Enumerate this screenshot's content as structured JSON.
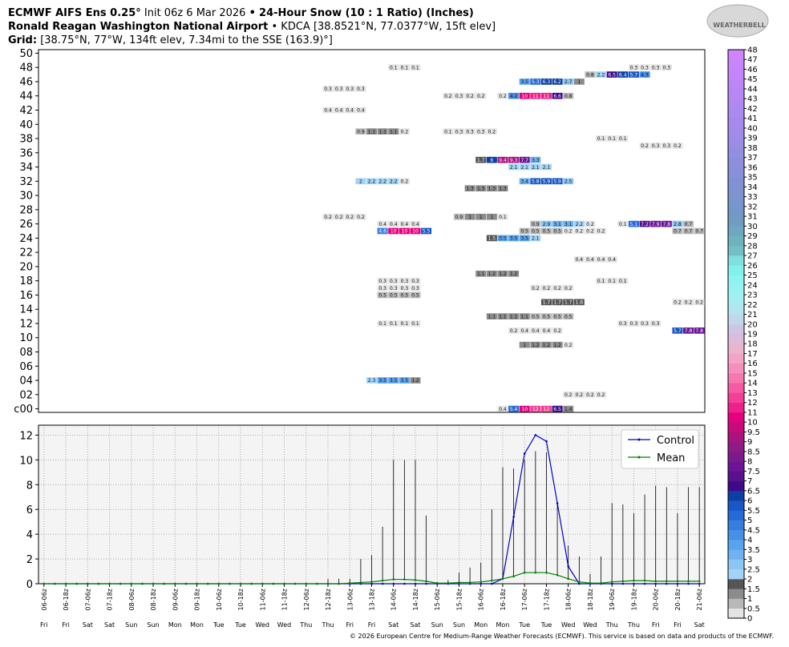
{
  "header": {
    "model": "ECMWF AIFS Ens 0.25°",
    "init": "Init 06z 6 Mar 2026",
    "separator": "•",
    "product": "24-Hour Snow (10 : 1 Ratio) (Inches)",
    "station": "Ronald Reagan Washington National Airport",
    "station_info": "• KDCA [38.8521°N, 77.0377°W, 15ft elev]",
    "grid_label": "Grid:",
    "grid_info": "[38.75°N, 77°W, 134ft elev, 7.34mi to the SSE (163.9)°]"
  },
  "logo": "WEATHERBELL",
  "footer": "© 2026 European Centre for Medium-Range Weather Forecasts (ECMWF). This service is based on data and products of the ECMWF.",
  "chart_data": [
    {
      "type": "heatmap",
      "ylim": [
        -0.5,
        50.5
      ],
      "xlim": [
        -0.5,
        60.5
      ],
      "yticks": [
        {
          "value": 0,
          "label": "c00"
        },
        {
          "value": 2,
          "label": "02"
        },
        {
          "value": 4,
          "label": "04"
        },
        {
          "value": 6,
          "label": "06"
        },
        {
          "value": 8,
          "label": "08"
        },
        10,
        12,
        14,
        16,
        18,
        20,
        22,
        24,
        26,
        28,
        30,
        32,
        34,
        36,
        38,
        40,
        42,
        44,
        46,
        48,
        50
      ],
      "rows": [
        {
          "member": 48,
          "from": 32,
          "values": [
            0.1,
            0.1,
            0.1
          ]
        },
        {
          "member": 48,
          "from": 54,
          "values": [
            0.3,
            0.3,
            0.3,
            0.3
          ]
        },
        {
          "member": 47,
          "from": 50,
          "values": [
            0.8,
            2.2,
            6.5,
            6.4,
            5.7,
            4.3
          ]
        },
        {
          "member": 46,
          "from": 44,
          "values": [
            3.5,
            5.3,
            6.3,
            6.2,
            2.7,
            1
          ]
        },
        {
          "member": 45,
          "from": 26,
          "values": [
            0.3,
            0.3,
            0.3,
            0.3
          ]
        },
        {
          "member": 44,
          "from": 37,
          "values": [
            0.2,
            0.3,
            0.2,
            0.2
          ]
        },
        {
          "member": 44,
          "from": 42,
          "values": [
            0.2,
            4.2,
            10,
            11,
            11,
            6.6,
            0.8
          ]
        },
        {
          "member": 42,
          "from": 26,
          "values": [
            0.4,
            0.4,
            0.4,
            0.4
          ]
        },
        {
          "member": 39,
          "from": 29,
          "values": [
            0.9,
            1.1,
            1.1,
            1.1,
            0.2
          ]
        },
        {
          "member": 39,
          "from": 37,
          "values": [
            0.1,
            0.3,
            0.3,
            0.3,
            0.2
          ]
        },
        {
          "member": 38,
          "from": 51,
          "values": [
            0.1,
            0.1,
            0.1
          ]
        },
        {
          "member": 37,
          "from": 55,
          "values": [
            0.2,
            0.3,
            0.3,
            0.2
          ]
        },
        {
          "member": 35,
          "from": 40,
          "values": [
            1.7,
            6,
            9.4,
            9.3,
            7.7,
            3.3
          ]
        },
        {
          "member": 34,
          "from": 43,
          "values": [
            2.1,
            2.1,
            2.1,
            2.1
          ]
        },
        {
          "member": 32,
          "from": 29,
          "values": [
            2,
            2.2,
            2.2,
            2.2,
            0.2
          ]
        },
        {
          "member": 32,
          "from": 44,
          "values": [
            3.4,
            5.8,
            5.9,
            5.9,
            2.5
          ]
        },
        {
          "member": 31,
          "from": 39,
          "values": [
            1.3,
            1.3,
            1.3,
            1.3
          ]
        },
        {
          "member": 27,
          "from": 26,
          "values": [
            0.2,
            0.2,
            0.2,
            0.2
          ]
        },
        {
          "member": 27,
          "from": 38,
          "values": [
            0.9,
            1,
            1,
            1,
            0.1
          ]
        },
        {
          "member": 26,
          "from": 31,
          "values": [
            0.4,
            0.4,
            0.4,
            0.4
          ]
        },
        {
          "member": 26,
          "from": 45,
          "values": [
            0.9,
            2.9,
            3.1,
            3.1,
            2.2,
            0.2
          ]
        },
        {
          "member": 26,
          "from": 53,
          "values": [
            0.1,
            5.1,
            7.2,
            7.9,
            7.8,
            2.8,
            0.7
          ]
        },
        {
          "member": 25,
          "from": 31,
          "values": [
            4.6,
            10,
            10,
            10,
            5.5
          ]
        },
        {
          "member": 25,
          "from": 44,
          "values": [
            0.5,
            0.5,
            0.5,
            0.5,
            0.2,
            0.2,
            0.2,
            0.2
          ]
        },
        {
          "member": 25,
          "from": 58,
          "values": [
            0.7,
            0.7,
            0.7
          ]
        },
        {
          "member": 24,
          "from": 41,
          "values": [
            1.5,
            3.5,
            3.5,
            3.5,
            2.1
          ]
        },
        {
          "member": 21,
          "from": 49,
          "values": [
            0.4,
            0.4,
            0.4,
            0.4
          ]
        },
        {
          "member": 19,
          "from": 40,
          "values": [
            1.1,
            1.2,
            1.2,
            1.2
          ]
        },
        {
          "member": 18,
          "from": 31,
          "values": [
            0.3,
            0.3,
            0.3,
            0.3
          ]
        },
        {
          "member": 18,
          "from": 51,
          "values": [
            0.1,
            0.1,
            0.1
          ]
        },
        {
          "member": 17,
          "from": 31,
          "values": [
            0.3,
            0.3,
            0.3,
            0.3
          ]
        },
        {
          "member": 17,
          "from": 45,
          "values": [
            0.2,
            0.2,
            0.2,
            0.2
          ]
        },
        {
          "member": 16,
          "from": 31,
          "values": [
            0.5,
            0.5,
            0.5,
            0.5
          ]
        },
        {
          "member": 15,
          "from": 46,
          "values": [
            1.7,
            1.7,
            1.7,
            1.6
          ]
        },
        {
          "member": 15,
          "from": 58,
          "values": [
            0.2,
            0.2,
            0.2
          ]
        },
        {
          "member": 13,
          "from": 41,
          "values": [
            1.1,
            1.1,
            1.1,
            1.1,
            0.5,
            0.5,
            0.5,
            0.5
          ]
        },
        {
          "member": 12,
          "from": 31,
          "values": [
            0.1,
            0.1,
            0.1,
            0.1
          ]
        },
        {
          "member": 12,
          "from": 53,
          "values": [
            0.3,
            0.3,
            0.3,
            0.3
          ]
        },
        {
          "member": 11,
          "from": 43,
          "values": [
            0.2,
            0.4,
            0.4,
            0.4,
            0.2
          ]
        },
        {
          "member": 11,
          "from": 58,
          "values": [
            5.7,
            7.8,
            7.8
          ]
        },
        {
          "member": 9,
          "from": 44,
          "values": [
            1,
            1.2,
            1.2,
            1.2,
            0.2
          ]
        },
        {
          "member": 4,
          "from": 30,
          "values": [
            2.3,
            3.5,
            3.5,
            3.5,
            1.2
          ]
        },
        {
          "member": 2,
          "from": 48,
          "values": [
            0.2,
            0.2,
            0.2,
            0.2
          ]
        },
        {
          "member": 0,
          "from": 42,
          "values": [
            0.4,
            5.4,
            10,
            12,
            12,
            6.5,
            1.4
          ]
        }
      ],
      "colorbar": {
        "levels": [
          0,
          0.5,
          1,
          1.5,
          2,
          2.5,
          3,
          3.5,
          4,
          4.5,
          5,
          5.5,
          6,
          6.5,
          7,
          7.5,
          8,
          8.5,
          9,
          9.5,
          10,
          11,
          12,
          13,
          14,
          15,
          16,
          17,
          18,
          19,
          20,
          21,
          22,
          23,
          24,
          25,
          26,
          27,
          28,
          29,
          30,
          31,
          32,
          33,
          34,
          35,
          36,
          37,
          38,
          39,
          40,
          41,
          42,
          43,
          44,
          45,
          46,
          47,
          48
        ],
        "colors": [
          "#e4e4e4",
          "#b8b8b8",
          "#8c8c8c",
          "#555555",
          "#a3d4f7",
          "#8cc6f5",
          "#6fb2f0",
          "#5aa2ec",
          "#4690e6",
          "#357ee0",
          "#256ad6",
          "#1857c4",
          "#0c3fa6",
          "#3f0a8a",
          "#58108f",
          "#6b1596",
          "#7d1a8a",
          "#911a84",
          "#a8137e",
          "#c80a7e",
          "#e6007e",
          "#f0208a",
          "#f43f96",
          "#f65aa2",
          "#f777b0",
          "#f58fbd",
          "#f2a3c6",
          "#eab3cf",
          "#dcbcdb",
          "#cdc6e2",
          "#bfd8ea",
          "#b2e6ef",
          "#a6eef2",
          "#99f2f2",
          "#8ef4f0",
          "#85f0ea",
          "#7fe0de",
          "#74bfc6",
          "#6fb2c0",
          "#6ea7c0",
          "#709cc2",
          "#7398c8",
          "#7896cc",
          "#7d94d0",
          "#8192d4",
          "#8790d8",
          "#8d8fdc",
          "#938ee0",
          "#998de4",
          "#9f8ce8",
          "#a58aec",
          "#ab89ef",
          "#b188f2",
          "#b787f5",
          "#bd86f7",
          "#c385f9",
          "#c984fb",
          "#cf83fd"
        ]
      }
    },
    {
      "type": "line",
      "xlim": [
        -0.5,
        60.5
      ],
      "ylim": [
        0,
        12.8
      ],
      "yticks": [
        0,
        2,
        4,
        6,
        8,
        10,
        12
      ],
      "grid": true,
      "legend": "upper right",
      "categories": [
        "06-06z",
        null,
        "06-18z",
        null,
        "07-06z",
        null,
        "07-18z",
        null,
        "08-06z",
        null,
        "08-18z",
        null,
        "09-06z",
        null,
        "09-18z",
        null,
        "10-06z",
        null,
        "10-18z",
        null,
        "11-06z",
        null,
        "11-18z",
        null,
        "12-06z",
        null,
        "12-18z",
        null,
        "13-06z",
        null,
        "13-18z",
        null,
        "14-06z",
        null,
        "14-18z",
        null,
        "15-06z",
        null,
        "15-18z",
        null,
        "16-06z",
        null,
        "16-18z",
        null,
        "17-06z",
        null,
        "17-18z",
        null,
        "18-06z",
        null,
        "18-18z",
        null,
        "19-06z",
        null,
        "19-18z",
        null,
        "20-06z",
        null,
        "20-18z",
        null,
        "21-06z"
      ],
      "days": [
        "Fri",
        null,
        "Fri",
        null,
        "Sat",
        null,
        "Sat",
        null,
        "Sun",
        null,
        "Sun",
        null,
        "Mon",
        null,
        "Mon",
        null,
        "Tue",
        null,
        "Tue",
        null,
        "Wed",
        null,
        "Wed",
        null,
        "Thu",
        null,
        "Thu",
        null,
        "Fri",
        null,
        "Fri",
        null,
        "Sat",
        null,
        "Sat",
        null,
        "Sun",
        null,
        "Sun",
        null,
        "Mon",
        null,
        "Mon",
        null,
        "Tue",
        null,
        "Tue",
        null,
        "Wed",
        null,
        "Wed",
        null,
        "Thu",
        null,
        "Thu",
        null,
        "Fri",
        null,
        "Fri",
        null,
        "Sat"
      ],
      "series": [
        {
          "name": "Control",
          "color": "#0000cc",
          "values": [
            0,
            0,
            0,
            0,
            0,
            0,
            0,
            0,
            0,
            0,
            0,
            0,
            0,
            0,
            0,
            0,
            0,
            0,
            0,
            0,
            0,
            0,
            0,
            0,
            0,
            0,
            0,
            0,
            0,
            0,
            0,
            0,
            0,
            0,
            0,
            0,
            0,
            0,
            0,
            0,
            0,
            0,
            0.4,
            5.4,
            10.5,
            12,
            11.5,
            6.5,
            1.4,
            0,
            0,
            0,
            0,
            0,
            0,
            0,
            0,
            0,
            0,
            0,
            0
          ]
        },
        {
          "name": "Mean",
          "color": "#008000",
          "values": [
            0,
            0,
            0,
            0,
            0,
            0,
            0,
            0,
            0,
            0,
            0,
            0,
            0,
            0,
            0,
            0,
            0,
            0,
            0,
            0,
            0,
            0,
            0,
            0,
            0,
            0,
            0,
            0,
            0.05,
            0.1,
            0.15,
            0.25,
            0.35,
            0.35,
            0.3,
            0.2,
            0.05,
            0.05,
            0.1,
            0.1,
            0.15,
            0.25,
            0.4,
            0.6,
            0.9,
            0.9,
            0.9,
            0.7,
            0.4,
            0.15,
            0.05,
            0.05,
            0.15,
            0.2,
            0.25,
            0.25,
            0.2,
            0.2,
            0.2,
            0.2,
            0.2
          ]
        }
      ],
      "max": [
        null,
        null,
        null,
        null,
        null,
        null,
        null,
        null,
        null,
        null,
        null,
        null,
        null,
        null,
        null,
        null,
        null,
        null,
        null,
        null,
        null,
        null,
        null,
        null,
        null,
        null,
        0.4,
        0.4,
        0.4,
        2,
        2.3,
        4.6,
        10,
        10,
        10,
        5.5,
        0.1,
        0.3,
        0.9,
        1.3,
        1.7,
        6,
        9.4,
        9.3,
        10,
        10.7,
        10.6,
        6.6,
        3.1,
        2.2,
        0.8,
        2.2,
        6.5,
        6.4,
        5.7,
        7.2,
        7.9,
        7.8,
        5.7,
        7.8,
        7.8
      ]
    }
  ]
}
